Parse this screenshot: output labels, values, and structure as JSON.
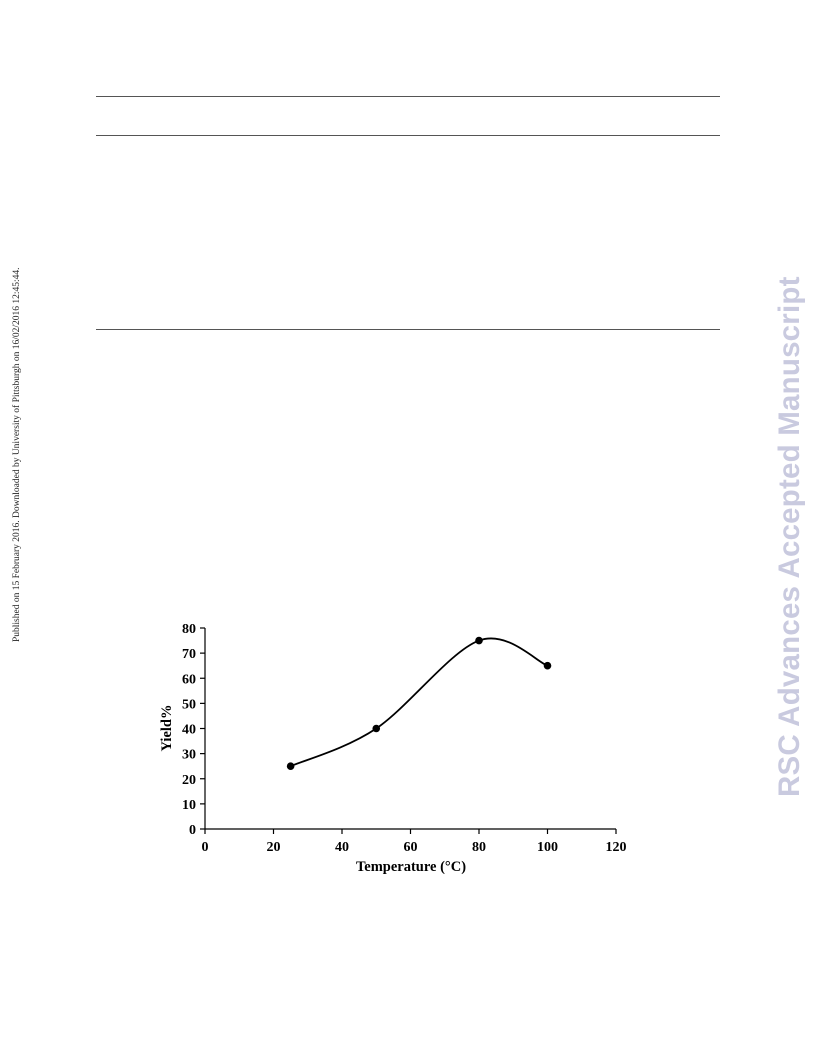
{
  "side_note": "Published on 15 February 2016. Downloaded by University of Pittsburgh on 16/02/2016 12:45:44.",
  "watermark": "RSC Advances Accepted Manuscript",
  "chart_data": {
    "type": "scatter",
    "smooth_line": true,
    "xlabel": "Temperature (°C)",
    "ylabel": "Yield%",
    "xlim": [
      0,
      120
    ],
    "ylim": [
      0,
      80
    ],
    "xticks": [
      0,
      20,
      40,
      60,
      80,
      100,
      120
    ],
    "yticks": [
      0,
      10,
      20,
      30,
      40,
      50,
      60,
      70,
      80
    ],
    "series": [
      {
        "x": [
          25,
          50,
          80,
          100
        ],
        "y": [
          25,
          40,
          75,
          65
        ]
      }
    ],
    "grid": false,
    "legend": "none",
    "colors": {
      "line": "#000000",
      "marker": "#000000"
    }
  }
}
